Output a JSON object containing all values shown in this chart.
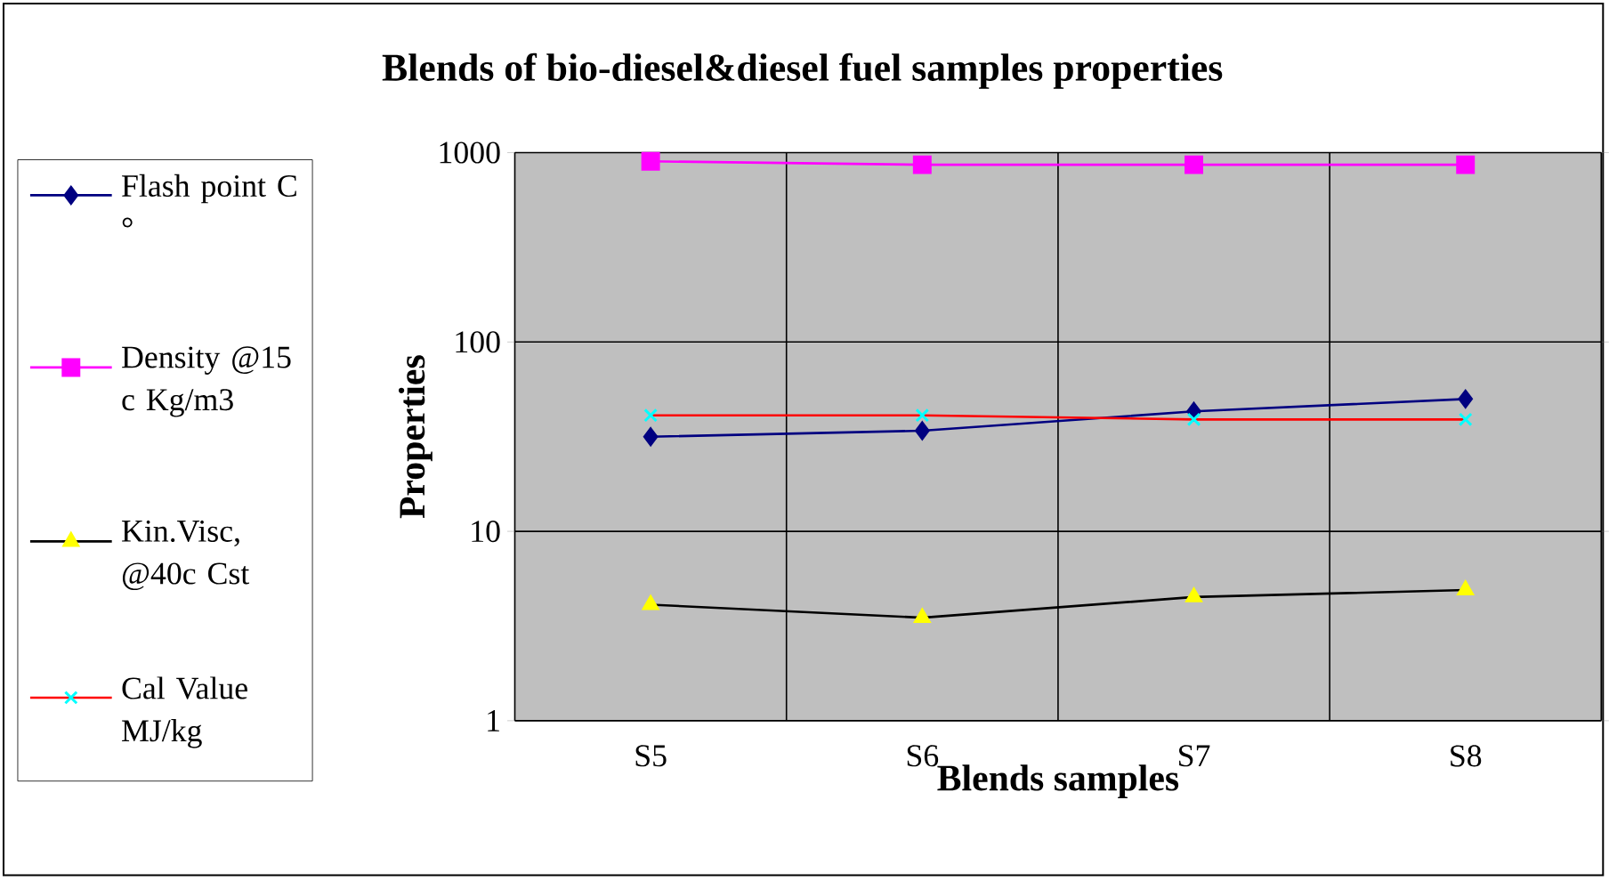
{
  "chart_data": {
    "type": "line",
    "title": "Blends of bio-diesel&diesel fuel samples properties",
    "xlabel": "Blends samples",
    "ylabel": "Properties",
    "categories": [
      "S5",
      "S6",
      "S7",
      "S8"
    ],
    "series": [
      {
        "name": "Flash point C °",
        "color": "#000080",
        "marker": "diamond",
        "colors": [
          "#000080",
          "#000080",
          "#000080",
          "#000080"
        ],
        "values": [
          31.6,
          34,
          43,
          50
        ]
      },
      {
        "name": "Density @15 c Kg/m3",
        "color": "#ff00ff",
        "marker": "square",
        "colors": [
          "#ff00ff",
          "#ff00ff",
          "#ff00ff",
          "#ff00ff"
        ],
        "values": [
          900,
          863,
          863,
          863
        ]
      },
      {
        "name": "Kin.Visc, @40c Cst",
        "color": "#000000",
        "marker": "triangle",
        "colors": [
          "#ffff00",
          "#ffff00",
          "#ffff00",
          "#ffff00"
        ],
        "values": [
          4.1,
          3.5,
          4.5,
          4.9
        ]
      },
      {
        "name": "Cal Value MJ/kg",
        "color": "#ff0000",
        "marker": "cross",
        "colors": [
          "#00ffff",
          "#00ffff",
          "#00ffff",
          "#00ffff"
        ],
        "values": [
          41,
          41,
          39,
          39
        ]
      }
    ],
    "log": "y",
    "ylim": [
      1,
      1000
    ],
    "yticks": [
      1,
      10,
      100,
      1000
    ],
    "grid": true,
    "legend": "left"
  }
}
